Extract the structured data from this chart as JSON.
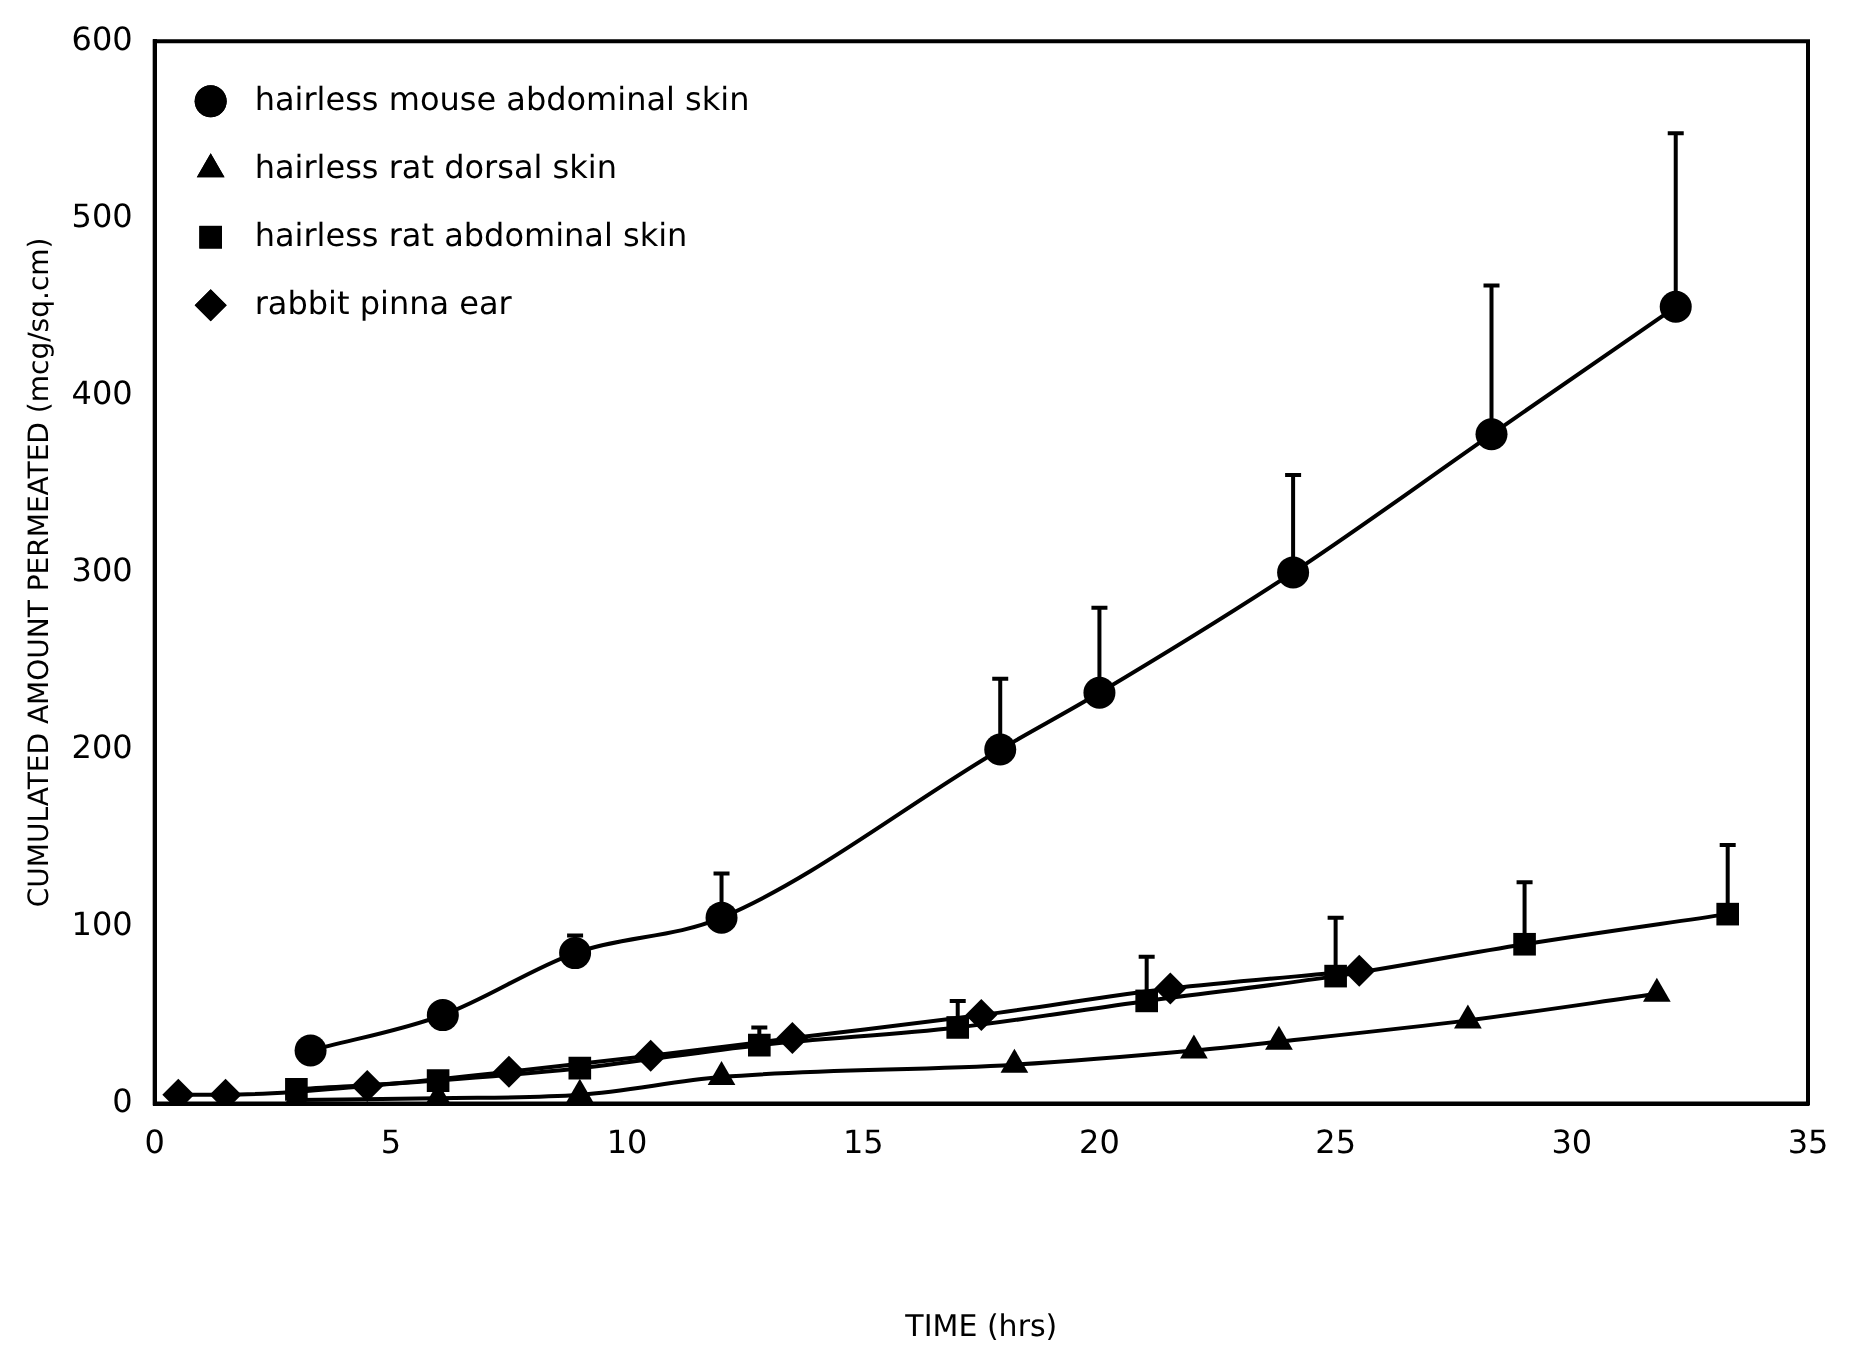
{
  "chart_data": {
    "type": "line",
    "xlabel": "TIME (hrs)",
    "ylabel": "CUMULATED AMOUNT PERMEATED (mcg/sq.cm)",
    "xlim": [
      0,
      35
    ],
    "xticks": [
      0,
      5,
      10,
      15,
      20,
      25,
      30,
      35
    ],
    "ylim": [
      0,
      600
    ],
    "yticks": [
      0,
      100,
      200,
      300,
      400,
      500,
      600
    ],
    "grid": false,
    "legend": "top left",
    "line_style": "solid",
    "series": [
      {
        "name": "hairless mouse abdominal skin",
        "color": "#000000",
        "marker": "circle",
        "x": [
          3.3,
          6.1,
          8.9,
          12,
          17.9,
          20,
          24.1,
          28.3,
          32.2
        ],
        "values": [
          30,
          50,
          85,
          105,
          200,
          232,
          300,
          378,
          450
        ],
        "errors": [
          null,
          null,
          [
            85,
            95
          ],
          [
            105,
            130
          ],
          [
            200,
            240
          ],
          [
            232,
            280
          ],
          [
            300,
            355
          ],
          [
            378,
            462
          ],
          [
            450,
            548
          ]
        ]
      },
      {
        "name": "hairless rat dorsal skin",
        "color": "#000000",
        "marker": "triangle",
        "x": [
          3,
          6,
          9,
          12,
          18.2,
          22,
          23.8,
          27.8,
          31.8
        ],
        "values": [
          2,
          3,
          5,
          15,
          22,
          30,
          35,
          47,
          62
        ]
      },
      {
        "name": "hairless rat abdominal skin",
        "color": "#000000",
        "marker": "square",
        "x": [
          3,
          6,
          9,
          12.8,
          17,
          21,
          25,
          29,
          33.3
        ],
        "values": [
          8,
          13,
          20,
          33,
          43,
          58,
          72,
          90,
          107
        ],
        "errors": [
          null,
          null,
          null,
          [
            33,
            43
          ],
          [
            43,
            58
          ],
          [
            58,
            83
          ],
          [
            72,
            105
          ],
          [
            90,
            125
          ],
          [
            107,
            146
          ]
        ]
      },
      {
        "name": "rabbit pinna ear",
        "color": "#000000",
        "marker": "diamond",
        "x": [
          0.5,
          1.5,
          4.5,
          7.5,
          10.5,
          13.5,
          17.5,
          21.5,
          25.5
        ],
        "values": [
          5,
          5,
          10,
          18,
          27,
          37,
          50,
          65,
          75
        ]
      }
    ]
  }
}
